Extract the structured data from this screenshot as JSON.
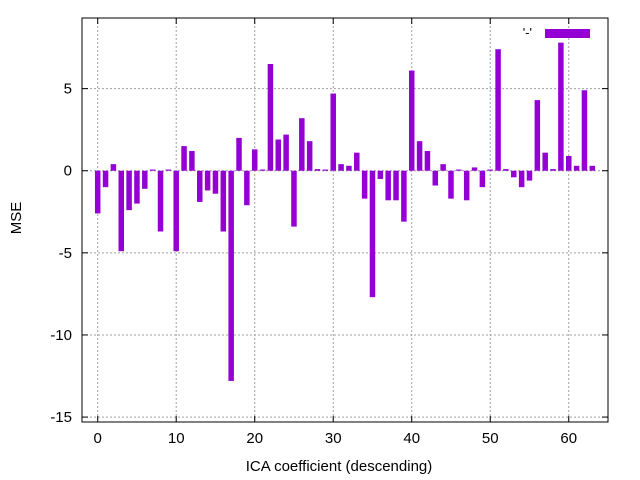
{
  "chart_data": {
    "type": "bar",
    "xlabel": "ICA coefficient (descending)",
    "ylabel": "MSE",
    "xlim": [
      -2,
      65
    ],
    "ylim": [
      -15.3,
      9.3
    ],
    "xticks": [
      0,
      10,
      20,
      30,
      40,
      50,
      60
    ],
    "yticks": [
      -15,
      -10,
      -5,
      0,
      5
    ],
    "grid": true,
    "legend": {
      "position": "top-right",
      "label": "'-'"
    },
    "colors": {
      "bar": "#9400d3",
      "grid": "#a0a0a0",
      "axis": "#000000"
    },
    "series": [
      {
        "values": [
          -2.6,
          -1.0,
          0.4,
          -4.9,
          -2.4,
          -2.0,
          -1.1,
          0.0,
          -3.7,
          0.0,
          -4.9,
          1.5,
          1.2,
          -1.9,
          -1.2,
          -1.4,
          -3.7,
          -12.8,
          2.0,
          -2.1,
          1.3,
          0.0,
          6.5,
          1.9,
          2.2,
          -3.4,
          3.2,
          1.8,
          0.1,
          0.0,
          4.7,
          0.4,
          0.3,
          1.1,
          -1.7,
          -7.7,
          -0.5,
          -1.8,
          -1.8,
          -3.1,
          6.1,
          1.8,
          1.2,
          -0.9,
          0.4,
          -1.7,
          0.0,
          -1.8,
          0.2,
          -1.0,
          0.0,
          7.4,
          0.1,
          -0.4,
          -1.0,
          -0.6,
          4.3,
          1.1,
          0.1,
          7.8,
          0.9,
          0.3,
          4.9,
          0.3
        ]
      }
    ]
  }
}
